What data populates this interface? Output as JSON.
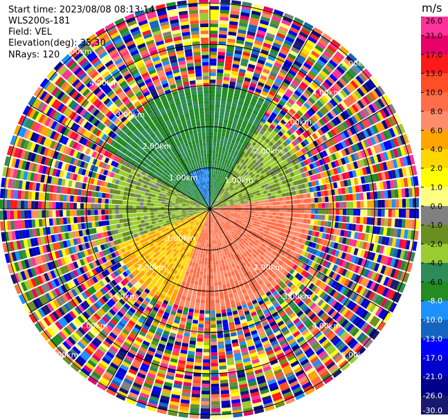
{
  "info": {
    "start_time": "Start time: 2023/08/08 08:13:14",
    "device": "WLS200s-181",
    "field": "Field: VEL",
    "elevation": "Elevation(deg): 35.30",
    "nrays": "NRays: 120"
  },
  "colorbar": {
    "unit": "m/s",
    "ticks": [
      "26.0",
      "21.0",
      "17.0",
      "13.0",
      "10.0",
      "8.0",
      "6.0",
      "4.0",
      "2.0",
      "1.0",
      "0.0",
      "-1.0",
      "-2.0",
      "-4.0",
      "-6.0",
      "-8.0",
      "-10.0",
      "-13.0",
      "-17.0",
      "-21.0",
      "-26.0",
      "-30.0"
    ],
    "colors": [
      "#ff3399",
      "#e8006a",
      "#ff1a1a",
      "#ff4d26",
      "#ff6e48",
      "#ff8c6a",
      "#ffa500",
      "#ffd700",
      "#ffff00",
      "#ffff80",
      "#808080",
      "#6b8e23",
      "#9acd32",
      "#2e8b57",
      "#228b22",
      "#1e90ff",
      "#1565c0",
      "#0000ff",
      "#0000cd",
      "#00008b",
      "#191970"
    ]
  },
  "chart_data": {
    "type": "heatmap",
    "projection": "polar PPI",
    "field": "VEL",
    "unit": "m/s",
    "nrays": 120,
    "elevation_deg": 35.3,
    "range_rings": [
      "1.00km",
      "2.00km",
      "3.00km",
      "4.00km",
      "5.00km"
    ],
    "ring_label_texts": [
      "1.00km",
      "1.00km",
      "1.00km",
      "2.00km",
      "2.00km",
      "2.00km",
      "2.00km",
      "3.00km",
      "3.00km",
      "3.00km",
      "3.00km",
      "4.00km",
      "4.00km",
      "4.00km",
      "4.00km",
      "5.00km",
      "5.00km",
      "5.00km",
      "5.00km"
    ],
    "velocity_range": [
      -30.0,
      26.0
    ],
    "sectors": [
      {
        "azimuth_from": 300,
        "azimuth_to": 30,
        "range_km": [
          0,
          3.0
        ],
        "velocity": -6.0
      },
      {
        "azimuth_from": 330,
        "azimuth_to": 360,
        "range_km": [
          0,
          1.0
        ],
        "velocity": -10.0
      },
      {
        "azimuth_from": 30,
        "azimuth_to": 80,
        "range_km": [
          0,
          2.5
        ],
        "velocity": -2.0
      },
      {
        "azimuth_from": 80,
        "azimuth_to": 200,
        "range_km": [
          0,
          2.5
        ],
        "velocity": 8.0
      },
      {
        "azimuth_from": 200,
        "azimuth_to": 250,
        "range_km": [
          0,
          2.5
        ],
        "velocity": 4.0
      },
      {
        "azimuth_from": 250,
        "azimuth_to": 300,
        "range_km": [
          0,
          2.5
        ],
        "velocity": -2.0
      }
    ]
  }
}
